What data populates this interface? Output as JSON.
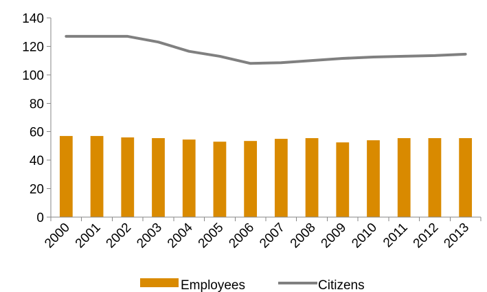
{
  "chart_data": {
    "type": "bar",
    "categories": [
      "2000",
      "2001",
      "2002",
      "2003",
      "2004",
      "2005",
      "2006",
      "2007",
      "2008",
      "2009",
      "2010",
      "2011",
      "2012",
      "2013"
    ],
    "series": [
      {
        "name": "Employees",
        "type": "bar",
        "color": "#d98a00",
        "values": [
          57,
          57,
          56,
          55.5,
          54.5,
          53,
          53.5,
          55,
          55.5,
          52.5,
          54,
          55.5,
          55.5,
          55.5
        ]
      },
      {
        "name": "Citizens",
        "type": "line",
        "color": "#808080",
        "values": [
          127,
          127,
          127,
          123,
          116.5,
          113,
          108,
          108.5,
          110,
          111.5,
          112.5,
          113,
          113.5,
          114.5
        ]
      }
    ],
    "ylim": [
      0,
      140
    ],
    "yticks": [
      0,
      20,
      40,
      60,
      80,
      100,
      120,
      140
    ],
    "ytick_labels": [
      "0",
      "20",
      "40",
      "60",
      "80",
      "100",
      "120",
      "140"
    ],
    "title": "",
    "xlabel": "",
    "ylabel": "",
    "grid": false,
    "legend_position": "bottom"
  }
}
